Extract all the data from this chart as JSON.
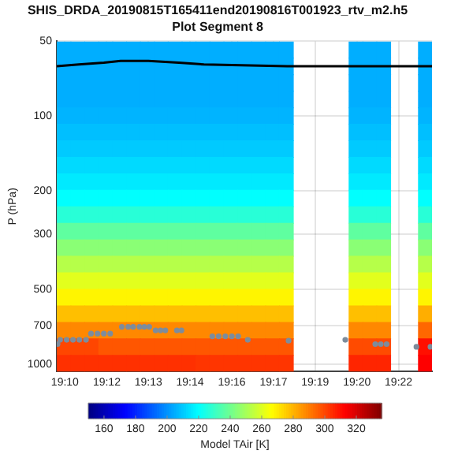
{
  "chart_data": {
    "type": "heatmap",
    "title": "SHIS_DRDA_20190815T165411end20190816T001923_rtv_m2.h5",
    "subtitle": "Plot Segment 8",
    "ylabel": "P (hPa)",
    "clabel": "Model TAir [K]",
    "x": [
      19.1675,
      19.1756,
      19.1837,
      19.1919,
      19.2,
      19.2081,
      19.2162,
      19.2243,
      19.2324,
      19.2405,
      19.2486,
      19.2568,
      19.2649,
      19.273,
      19.2811,
      19.2892,
      19.2973,
      19.3054,
      19.3135,
      19.3216,
      19.3298,
      19.3379,
      19.346,
      19.3541,
      19.3622,
      19.3703,
      19.3784
    ],
    "cells": [
      [
        205,
        205,
        205,
        205,
        205,
        205,
        205,
        205,
        205,
        205,
        205,
        205,
        205,
        205,
        205,
        205,
        205,
        null,
        null,
        null,
        null,
        205,
        205,
        205,
        null,
        null,
        205
      ],
      [
        205,
        205,
        205,
        205,
        205,
        205,
        205,
        205,
        205,
        205,
        205,
        205,
        205,
        205,
        205,
        205,
        205,
        null,
        null,
        null,
        null,
        205,
        205,
        205,
        null,
        null,
        205
      ],
      [
        205,
        205,
        205,
        205,
        205,
        205,
        205,
        205,
        205,
        205,
        205,
        205,
        205,
        205,
        205,
        205,
        205,
        null,
        null,
        null,
        null,
        205,
        205,
        205,
        null,
        null,
        205
      ],
      [
        205,
        205,
        205,
        205,
        205,
        205,
        205,
        205,
        205,
        205,
        205,
        205,
        205,
        205,
        205,
        205,
        205,
        null,
        null,
        null,
        null,
        205,
        205,
        205,
        null,
        null,
        205
      ],
      [
        206,
        206,
        206,
        206,
        206,
        206,
        206,
        206,
        206,
        206,
        206,
        206,
        206,
        206,
        206,
        206,
        206,
        null,
        null,
        null,
        null,
        206,
        206,
        206,
        null,
        null,
        206
      ],
      [
        208,
        208,
        208,
        208,
        208,
        208,
        208,
        208,
        208,
        208,
        208,
        208,
        208,
        208,
        208,
        208,
        208,
        null,
        null,
        null,
        null,
        208,
        208,
        208,
        null,
        null,
        208
      ],
      [
        210,
        210,
        210,
        210,
        210,
        210,
        210,
        210,
        210,
        210,
        210,
        210,
        210,
        210,
        210,
        210,
        210,
        null,
        null,
        null,
        null,
        210,
        210,
        210,
        null,
        null,
        210
      ],
      [
        213,
        213,
        213,
        213,
        213,
        213,
        213,
        213,
        213,
        213,
        213,
        213,
        213,
        213,
        213,
        213,
        213,
        null,
        null,
        null,
        null,
        213,
        213,
        213,
        null,
        null,
        213
      ],
      [
        216,
        216,
        216,
        216,
        216,
        216,
        216,
        216,
        216,
        216,
        216,
        216,
        216,
        216,
        216,
        216,
        216,
        null,
        null,
        null,
        null,
        216,
        216,
        216,
        null,
        null,
        216
      ],
      [
        220,
        220,
        220,
        220,
        220,
        220,
        220,
        220,
        220,
        220,
        220,
        220,
        220,
        220,
        220,
        220,
        220,
        null,
        null,
        null,
        null,
        220,
        220,
        220,
        null,
        null,
        220
      ],
      [
        227,
        227,
        227,
        227,
        227,
        227,
        227,
        227,
        227,
        227,
        227,
        227,
        227,
        227,
        227,
        227,
        227,
        null,
        null,
        null,
        null,
        227,
        227,
        227,
        null,
        null,
        227
      ],
      [
        237,
        237,
        237,
        237,
        237,
        237,
        237,
        237,
        237,
        237,
        237,
        237,
        237,
        237,
        237,
        237,
        237,
        null,
        null,
        null,
        null,
        237,
        237,
        237,
        null,
        null,
        237
      ],
      [
        245,
        245,
        245,
        245,
        245,
        245,
        245,
        245,
        245,
        245,
        245,
        245,
        245,
        245,
        245,
        245,
        245,
        null,
        null,
        null,
        null,
        245,
        245,
        245,
        null,
        null,
        245
      ],
      [
        253,
        253,
        253,
        253,
        253,
        253,
        253,
        253,
        253,
        253,
        253,
        253,
        253,
        253,
        253,
        253,
        253,
        null,
        null,
        null,
        null,
        253,
        253,
        253,
        null,
        null,
        253
      ],
      [
        261,
        261,
        261,
        261,
        261,
        261,
        261,
        261,
        261,
        261,
        261,
        261,
        261,
        261,
        261,
        261,
        261,
        null,
        null,
        null,
        null,
        261,
        261,
        261,
        null,
        null,
        261
      ],
      [
        268,
        268,
        268,
        268,
        268,
        268,
        268,
        268,
        268,
        268,
        268,
        268,
        268,
        268,
        268,
        268,
        268,
        null,
        null,
        null,
        null,
        268,
        268,
        268,
        null,
        null,
        268
      ],
      [
        278,
        278,
        278,
        278,
        278,
        278,
        278,
        278,
        278,
        278,
        278,
        278,
        278,
        278,
        278,
        278,
        278,
        null,
        null,
        null,
        null,
        278,
        278,
        278,
        null,
        null,
        281
      ],
      [
        288,
        288,
        288,
        288,
        288,
        288,
        288,
        288,
        288,
        288,
        288,
        288,
        288,
        288,
        288,
        288,
        288,
        null,
        null,
        null,
        null,
        288,
        288,
        288,
        null,
        null,
        294
      ],
      [
        300,
        300,
        300,
        297,
        297,
        297,
        297,
        297,
        297,
        297,
        297,
        297,
        297,
        297,
        297,
        297,
        297,
        null,
        null,
        null,
        null,
        299,
        299,
        299,
        null,
        null,
        310
      ],
      [
        304,
        304,
        304,
        304,
        304,
        304,
        304,
        304,
        304,
        304,
        303,
        303,
        303,
        303,
        303,
        303,
        303,
        null,
        null,
        null,
        null,
        306,
        306,
        306,
        null,
        null,
        313
      ]
    ],
    "clim": [
      150,
      336
    ],
    "cticks": [
      160,
      180,
      200,
      220,
      240,
      260,
      280,
      300,
      320
    ],
    "series": [
      {
        "type": "line",
        "x": [
          19.1635,
          19.1764,
          19.191,
          19.2008,
          19.217,
          19.2348,
          19.2494,
          19.2981,
          19.3825
        ],
        "values": [
          63,
          62,
          61,
          60,
          60,
          61,
          62,
          63,
          63
        ],
        "color": "#000000",
        "marker": "none"
      },
      {
        "type": "scatter",
        "x": [
          19.164,
          19.1655,
          19.1693,
          19.173,
          19.1767,
          19.1806,
          19.1835,
          19.1873,
          19.191,
          19.1947,
          19.2015,
          19.2052,
          19.2081,
          19.2118,
          19.2146,
          19.2175,
          19.2212,
          19.2241,
          19.2269,
          19.2336,
          19.2363,
          19.2543,
          19.258,
          19.2619,
          19.2657,
          19.2694,
          19.275,
          19.2988,
          19.3319,
          19.3494,
          19.3526,
          19.356,
          19.3734,
          19.3816
        ],
        "values": [
          830,
          798,
          798,
          798,
          798,
          798,
          753,
          753,
          753,
          753,
          707,
          707,
          707,
          707,
          707,
          707,
          731,
          731,
          731,
          731,
          731,
          772,
          772,
          772,
          772,
          772,
          798,
          804,
          798,
          830,
          830,
          830,
          851,
          851
        ],
        "color": "#7d8c9c",
        "marker": "circle"
      }
    ],
    "xlim": [
      19.1635,
      19.3825
    ],
    "xticks": [
      {
        "value": 19.1683,
        "label": "19:10"
      },
      {
        "value": 19.1927,
        "label": "19:12"
      },
      {
        "value": 19.217,
        "label": "19:13"
      },
      {
        "value": 19.2413,
        "label": "19:14"
      },
      {
        "value": 19.2657,
        "label": "19:16"
      },
      {
        "value": 19.29,
        "label": "19:17"
      },
      {
        "value": 19.3143,
        "label": "19:19"
      },
      {
        "value": 19.3387,
        "label": "19:20"
      },
      {
        "value": 19.363,
        "label": "19:22"
      }
    ],
    "ylim": [
      1070,
      50
    ],
    "yticks": [
      50,
      100,
      200,
      300,
      500,
      700,
      1000
    ],
    "log": "y",
    "grid": true
  }
}
